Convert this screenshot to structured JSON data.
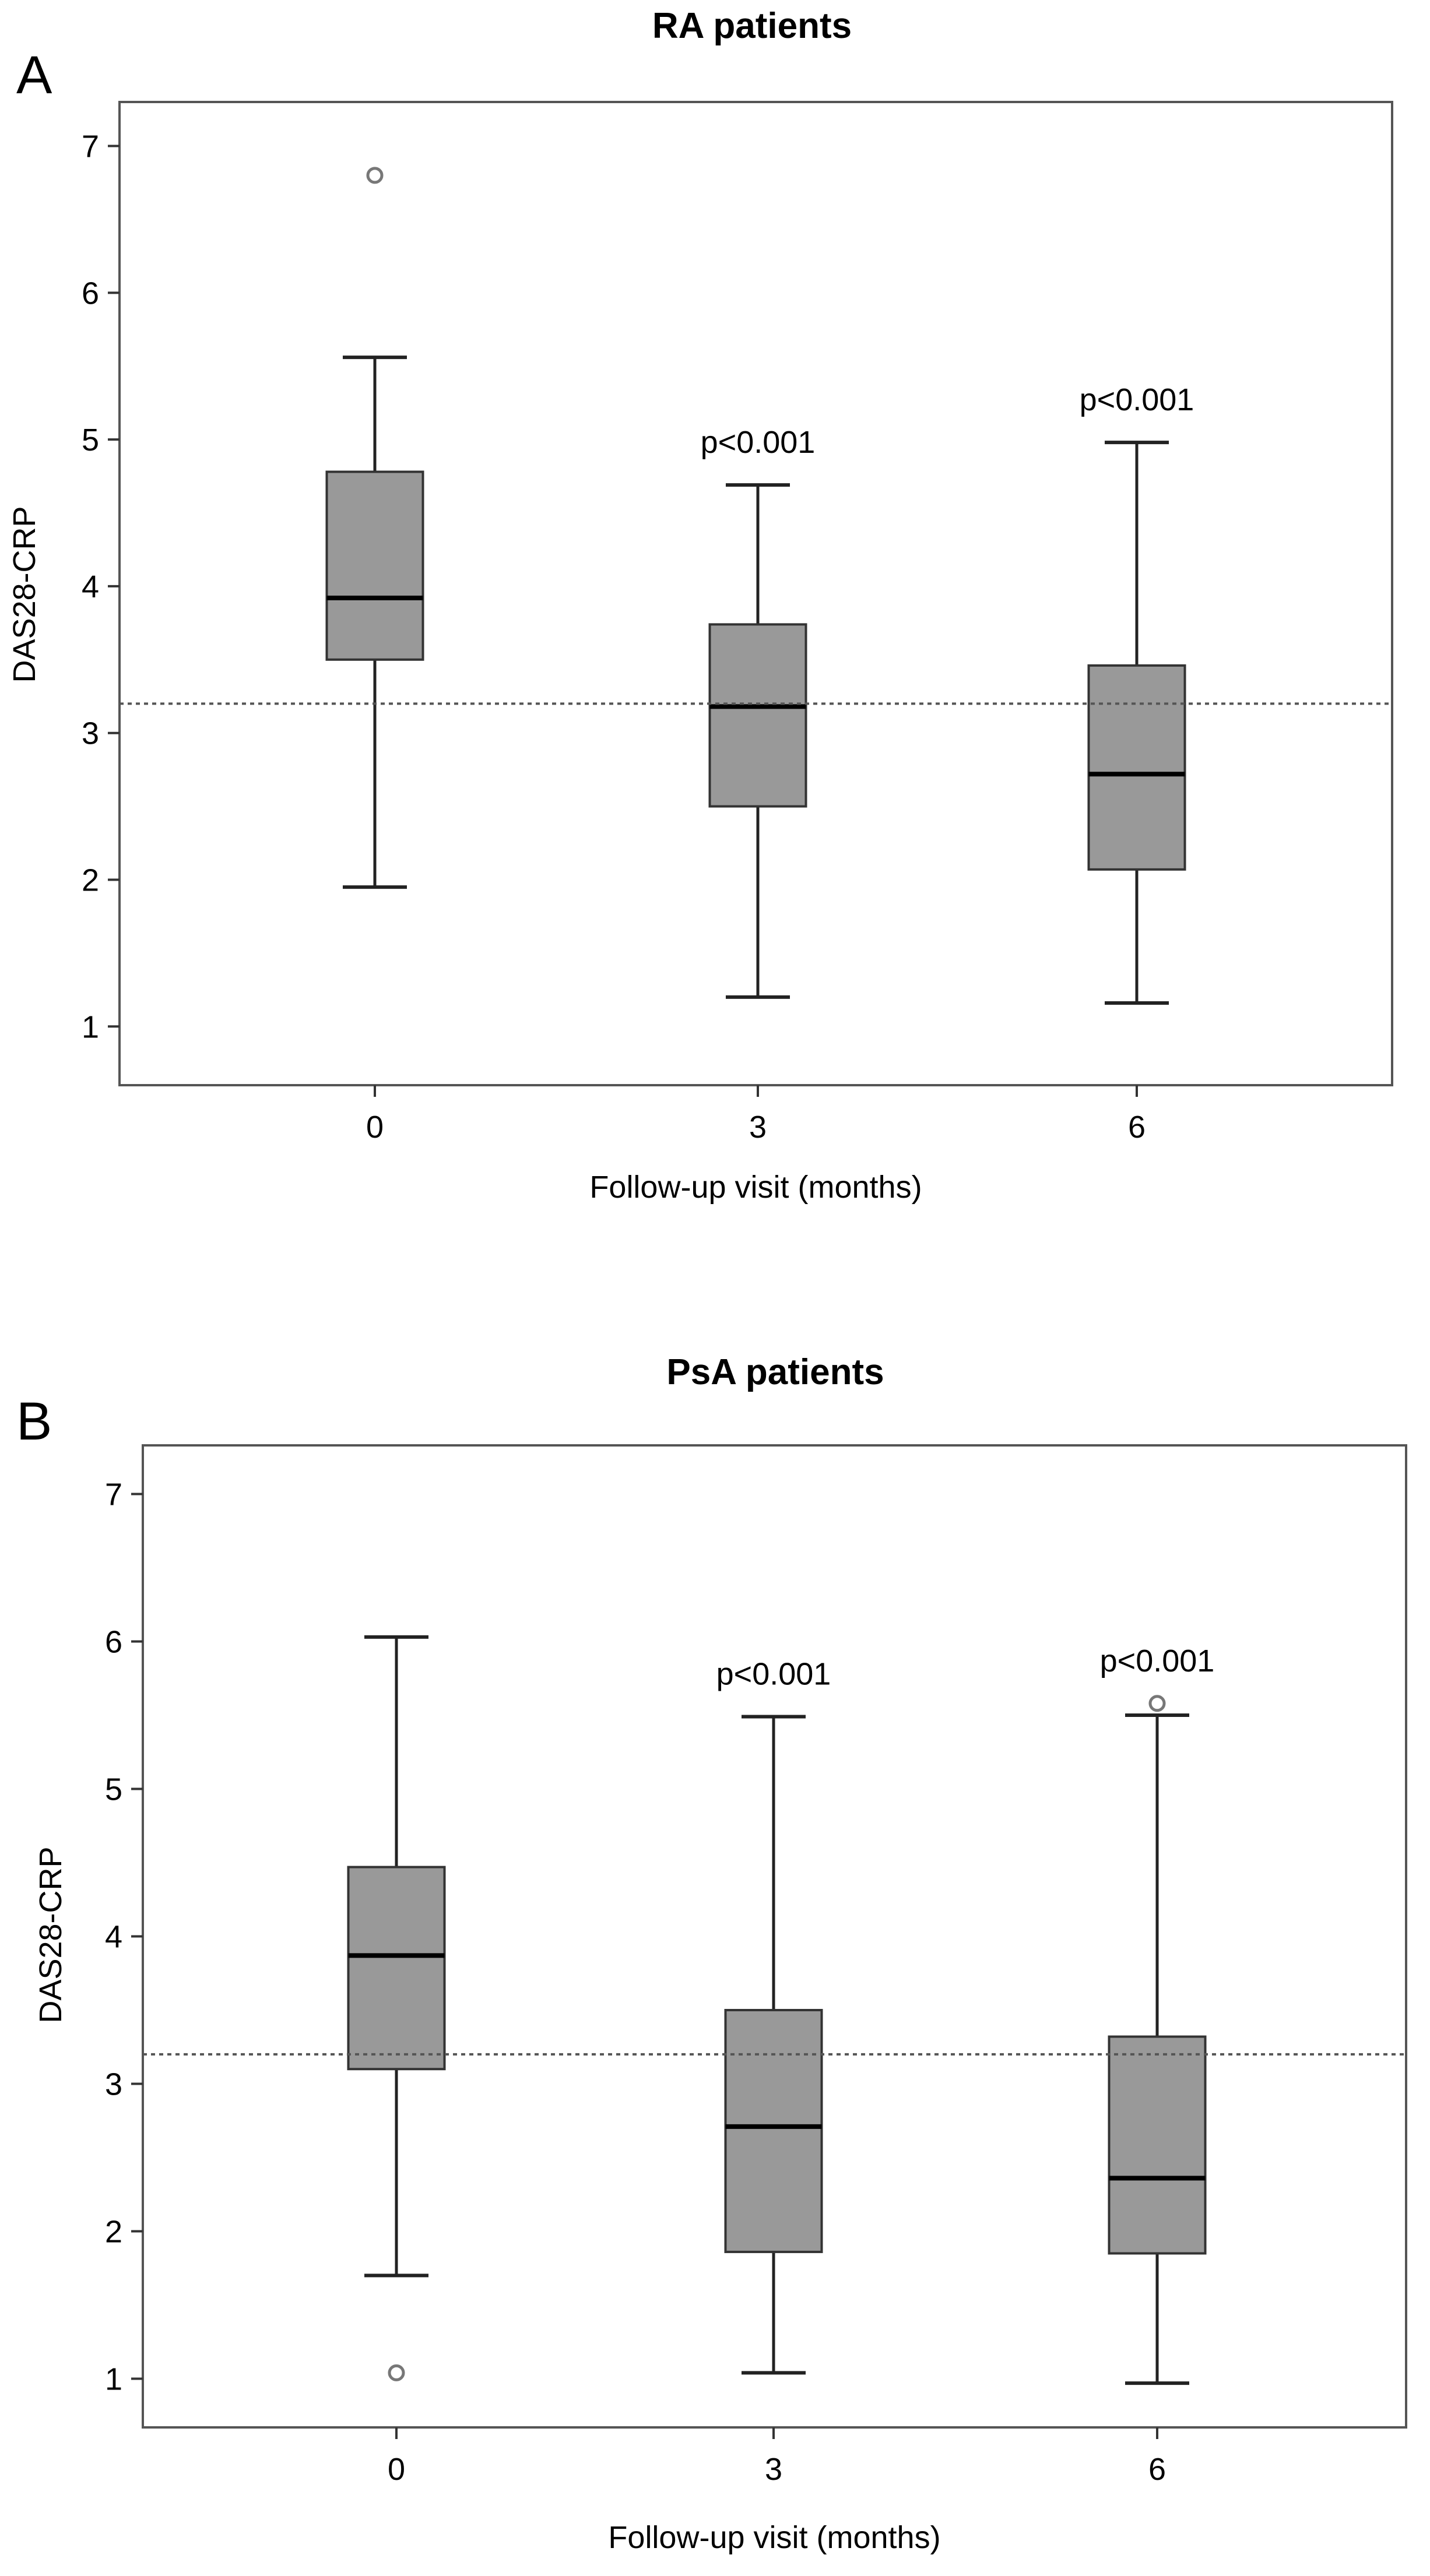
{
  "chart_data": [
    {
      "type": "box",
      "panel": "A",
      "title": "RA patients",
      "xlabel": "Follow-up visit (months)",
      "ylabel": "DAS28-CRP",
      "categories": [
        "0",
        "3",
        "6"
      ],
      "yticks": [
        1,
        2,
        3,
        4,
        5,
        6,
        7
      ],
      "ylim": [
        0.6,
        7.3
      ],
      "reference_line": 3.2,
      "boxes": [
        {
          "category": "0",
          "whisker_low": 1.95,
          "q1": 3.5,
          "median": 3.92,
          "q3": 4.78,
          "whisker_high": 5.56,
          "outliers": [
            6.8
          ],
          "annotation": ""
        },
        {
          "category": "3",
          "whisker_low": 1.2,
          "q1": 2.5,
          "median": 3.18,
          "q3": 3.74,
          "whisker_high": 4.69,
          "outliers": [],
          "annotation": "p<0.001"
        },
        {
          "category": "6",
          "whisker_low": 1.16,
          "q1": 2.07,
          "median": 2.72,
          "q3": 3.46,
          "whisker_high": 4.98,
          "outliers": [],
          "annotation": "p<0.001"
        }
      ]
    },
    {
      "type": "box",
      "panel": "B",
      "title": "PsA patients",
      "xlabel": "Follow-up visit (months)",
      "ylabel": "DAS28-CRP",
      "categories": [
        "0",
        "3",
        "6"
      ],
      "yticks": [
        1,
        2,
        3,
        4,
        5,
        6,
        7
      ],
      "ylim": [
        0.67,
        7.33
      ],
      "reference_line": 3.2,
      "boxes": [
        {
          "category": "0",
          "whisker_low": 1.7,
          "q1": 3.1,
          "median": 3.87,
          "q3": 4.47,
          "whisker_high": 6.03,
          "outliers": [
            1.04
          ],
          "annotation": ""
        },
        {
          "category": "3",
          "whisker_low": 1.04,
          "q1": 1.86,
          "median": 2.71,
          "q3": 3.5,
          "whisker_high": 5.49,
          "outliers": [],
          "annotation": "p<0.001"
        },
        {
          "category": "6",
          "whisker_low": 0.97,
          "q1": 1.85,
          "median": 2.36,
          "q3": 3.32,
          "whisker_high": 5.5,
          "outliers": [
            5.58
          ],
          "annotation": "p<0.001"
        }
      ]
    }
  ]
}
